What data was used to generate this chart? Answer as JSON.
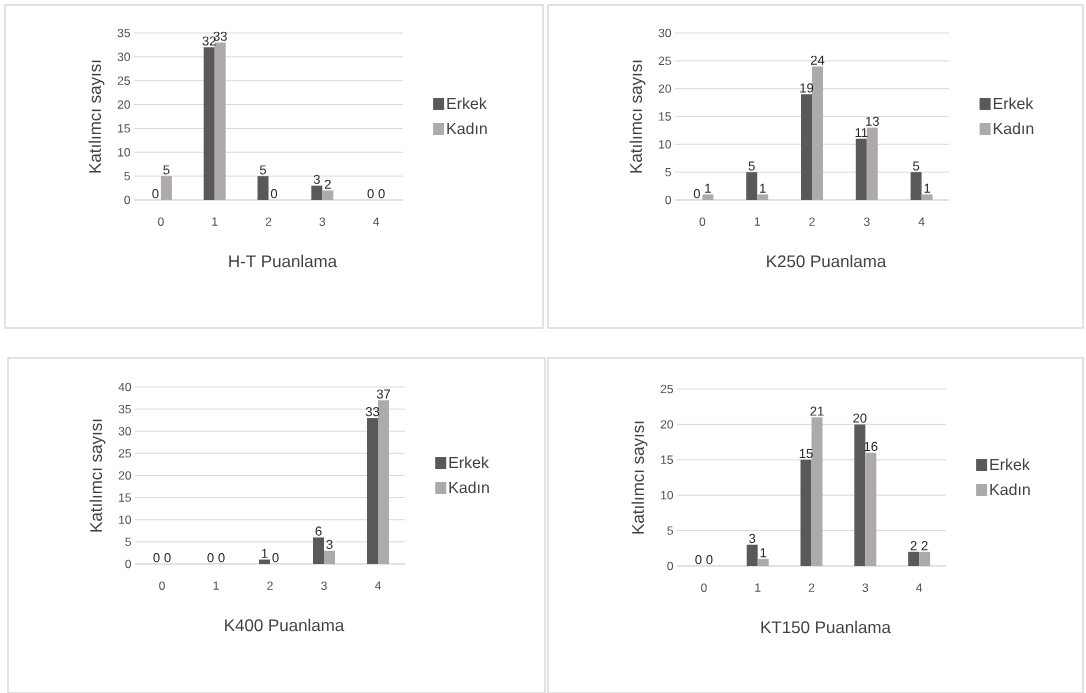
{
  "chart_data": [
    {
      "type": "bar",
      "xlabel": "H-T Puanlama",
      "ylabel": "Katılımcı sayısı",
      "categories": [
        "0",
        "1",
        "2",
        "3",
        "4"
      ],
      "series": [
        {
          "name": "Erkek",
          "color": "#595959",
          "values": [
            0,
            32,
            5,
            3,
            0
          ]
        },
        {
          "name": "Kadın",
          "color": "#aeaaaa",
          "values": [
            5,
            33,
            0,
            2,
            0
          ]
        }
      ],
      "ylim": [
        0,
        35
      ],
      "yticks": [
        0,
        5,
        10,
        15,
        20,
        25,
        30,
        35
      ],
      "grid": "y",
      "legend": "right",
      "data_labels": true
    },
    {
      "type": "bar",
      "xlabel": "K250 Puanlama",
      "ylabel": "Katılımcı sayısı",
      "categories": [
        "0",
        "1",
        "2",
        "3",
        "4"
      ],
      "series": [
        {
          "name": "Erkek",
          "color": "#595959",
          "values": [
            0,
            5,
            19,
            11,
            5
          ]
        },
        {
          "name": "Kadın",
          "color": "#aeaaaa",
          "values": [
            1,
            1,
            24,
            13,
            1
          ]
        }
      ],
      "ylim": [
        0,
        30
      ],
      "yticks": [
        0,
        5,
        10,
        15,
        20,
        25,
        30
      ],
      "grid": "y",
      "legend": "right",
      "data_labels": true
    },
    {
      "type": "bar",
      "xlabel": "K400 Puanlama",
      "ylabel": "Katılımcı sayısı",
      "categories": [
        "0",
        "1",
        "2",
        "3",
        "4"
      ],
      "series": [
        {
          "name": "Erkek",
          "color": "#595959",
          "values": [
            0,
            0,
            1,
            6,
            33
          ]
        },
        {
          "name": "Kadın",
          "color": "#aeaaaa",
          "values": [
            0,
            0,
            0,
            3,
            37
          ]
        }
      ],
      "ylim": [
        0,
        40
      ],
      "yticks": [
        0,
        5,
        10,
        15,
        20,
        25,
        30,
        35,
        40
      ],
      "grid": "y",
      "legend": "right",
      "data_labels": true
    },
    {
      "type": "bar",
      "xlabel": "KT150 Puanlama",
      "ylabel": "Katılımcı sayısı",
      "categories": [
        "0",
        "1",
        "2",
        "3",
        "4"
      ],
      "series": [
        {
          "name": "Erkek",
          "color": "#595959",
          "values": [
            0,
            3,
            15,
            20,
            2
          ]
        },
        {
          "name": "Kadın",
          "color": "#aeaaaa",
          "values": [
            0,
            1,
            21,
            16,
            2
          ]
        }
      ],
      "ylim": [
        0,
        25
      ],
      "yticks": [
        0,
        5,
        10,
        15,
        20,
        25
      ],
      "grid": "y",
      "legend": "right",
      "data_labels": true
    }
  ]
}
